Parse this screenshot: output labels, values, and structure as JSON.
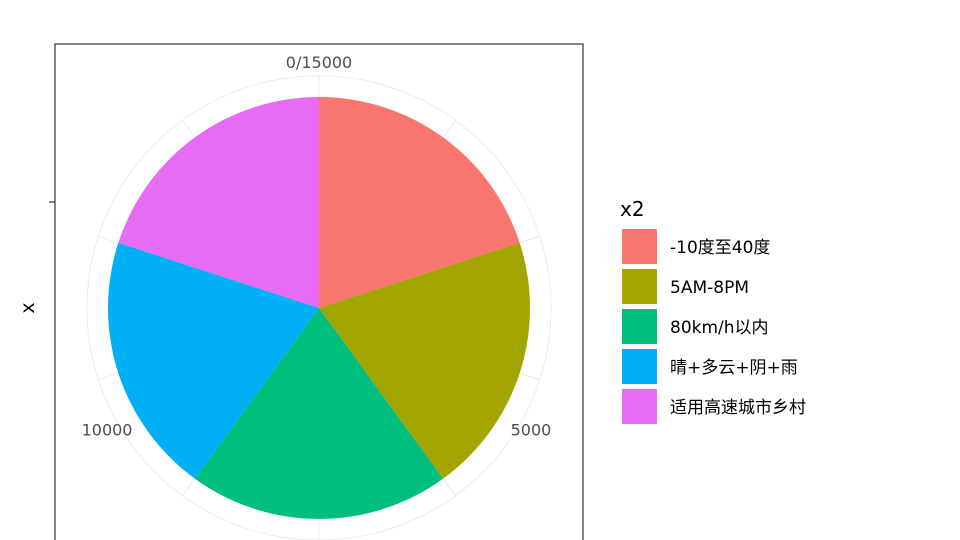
{
  "chart_data": {
    "type": "pie",
    "title": "",
    "xlabel": "",
    "ylabel": "x",
    "legend_title": "x2",
    "legend_position": "right",
    "grid": true,
    "theta_ticks": [
      {
        "value": 0,
        "label": "0/15000"
      },
      {
        "value": 5000,
        "label": "5000"
      },
      {
        "value": 10000,
        "label": "10000"
      }
    ],
    "theta_max": 15000,
    "slices": [
      {
        "label": "-10度至40度",
        "value": 3000,
        "color": "#F8766D"
      },
      {
        "label": "5AM-8PM",
        "value": 3000,
        "color": "#A3A500"
      },
      {
        "label": "80km/h以内",
        "value": 3000,
        "color": "#00BF7D"
      },
      {
        "label": "晴+多云+阴+雨",
        "value": 3000,
        "color": "#00B0F6"
      },
      {
        "label": "适用高速城市乡村",
        "value": 3000,
        "color": "#E76BF3"
      }
    ]
  }
}
